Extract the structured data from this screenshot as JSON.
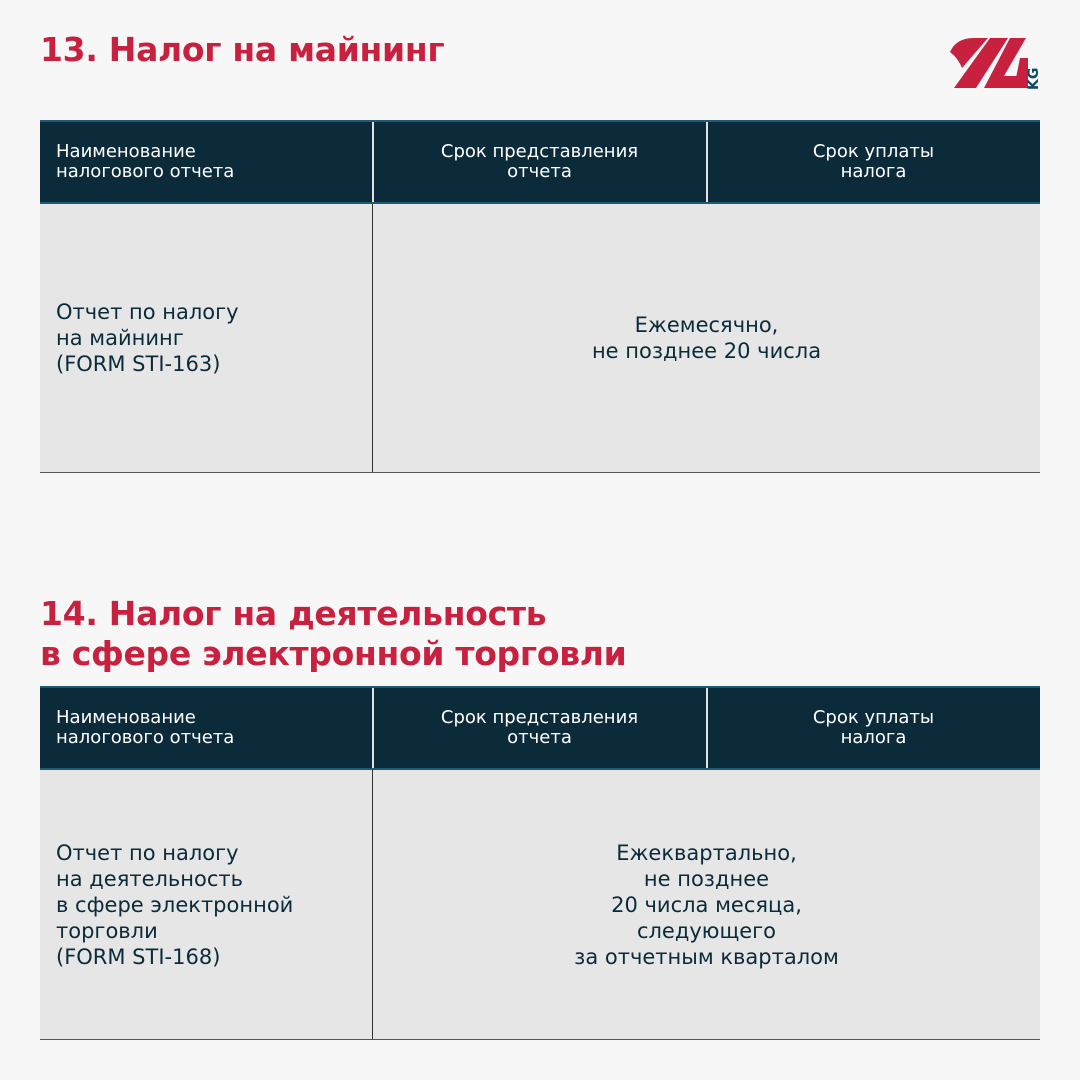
{
  "logo": {
    "text": "24",
    "suffix": "KG",
    "colors": {
      "red": "#c8213f",
      "blue": "#0b4a66"
    }
  },
  "colors": {
    "title": "#c8213f",
    "header_bg": "#0b2b3a",
    "body_bg": "#e6e6e6",
    "page_bg": "#f7f7f7"
  },
  "sections": [
    {
      "title": "13. Налог на майнинг",
      "headers": [
        "Наименование\nналогового отчета",
        "Срок представления\nотчета",
        "Срок уплаты\nналога"
      ],
      "report": "Отчет по налогу\nна майнинг\n(FORM STI-163)",
      "deadline": "Ежемесячно,\nне позднее 20 числа"
    },
    {
      "title": "14. Налог на деятельность\nв сфере электронной торговли",
      "headers": [
        "Наименование\nналогового отчета",
        "Срок представления\nотчета",
        "Срок уплаты\nналога"
      ],
      "report": "Отчет по налогу\nна деятельность\nв сфере электронной\nторговли\n(FORM STI-168)",
      "deadline": "Ежеквартально,\nне позднее\n20 числа месяца,\nследующего\nза отчетным кварталом"
    }
  ]
}
